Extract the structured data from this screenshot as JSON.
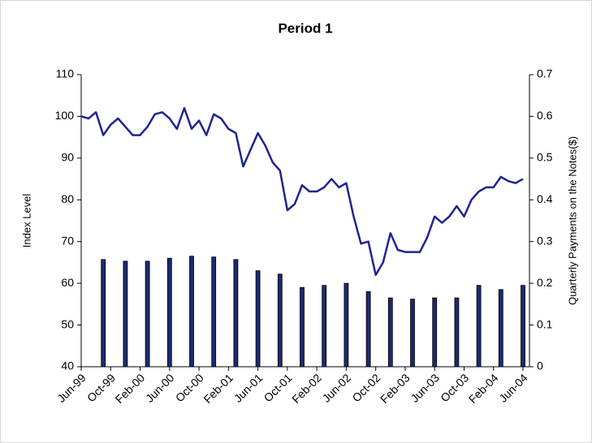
{
  "chart_data": {
    "type": "combo",
    "title": "Period 1",
    "y_label": "Index Level",
    "y2_label": "Quarterly Payments on the Notes($)",
    "categories": [
      "Jun-99",
      null,
      null,
      null,
      "Oct-99",
      null,
      null,
      null,
      "Feb-00",
      null,
      null,
      null,
      "Jun-00",
      null,
      null,
      null,
      "Oct-00",
      null,
      null,
      null,
      "Feb-01",
      null,
      null,
      null,
      "Jun-01",
      null,
      null,
      null,
      "Oct-01",
      null,
      null,
      null,
      "Feb-02",
      null,
      null,
      null,
      "Jun-02",
      null,
      null,
      null,
      "Oct-02",
      null,
      null,
      null,
      "Feb-03",
      null,
      null,
      null,
      "Jun-03",
      null,
      null,
      null,
      "Oct-03",
      null,
      null,
      null,
      "Feb-04",
      null,
      null,
      null,
      "Jun-04"
    ],
    "series": [
      {
        "type": "line",
        "color": "#1f2490",
        "values": [
          100,
          99.5,
          101,
          95.5,
          98,
          99.5,
          97.5,
          95.5,
          95.5,
          97.5,
          100.5,
          101,
          99.5,
          97,
          102,
          97,
          99,
          95.5,
          100.5,
          99.5,
          97,
          96,
          88,
          92,
          96,
          93,
          89,
          87,
          77.5,
          79,
          83.5,
          82,
          82,
          83,
          85,
          83,
          84,
          76,
          69.5,
          70,
          62,
          65,
          72,
          68,
          67.5,
          67.5,
          67.5,
          71,
          76,
          74.5,
          76,
          78.5,
          76,
          80,
          82,
          83,
          83,
          85.5,
          84.5,
          84,
          85
        ]
      },
      {
        "type": "bar",
        "axis": "y2",
        "color": "#1c2a70",
        "values": [
          null,
          null,
          null,
          0.257,
          null,
          null,
          0.253,
          null,
          null,
          0.253,
          null,
          null,
          0.26,
          null,
          null,
          0.265,
          null,
          null,
          0.263,
          null,
          null,
          0.257,
          null,
          null,
          0.23,
          null,
          null,
          0.222,
          null,
          null,
          0.19,
          null,
          null,
          0.195,
          null,
          null,
          0.2,
          null,
          null,
          0.18,
          null,
          null,
          0.165,
          null,
          null,
          0.162,
          null,
          null,
          0.165,
          null,
          null,
          0.165,
          null,
          null,
          0.195,
          null,
          null,
          0.185,
          null,
          null,
          0.195
        ]
      }
    ],
    "ylim": [
      40,
      110
    ],
    "yticks": [
      40,
      50,
      60,
      70,
      80,
      90,
      100,
      110
    ],
    "y2lim": [
      0,
      0.7
    ],
    "y2ticks": [
      0,
      0.1,
      0.2,
      0.3,
      0.4,
      0.5,
      0.6,
      0.7
    ]
  }
}
